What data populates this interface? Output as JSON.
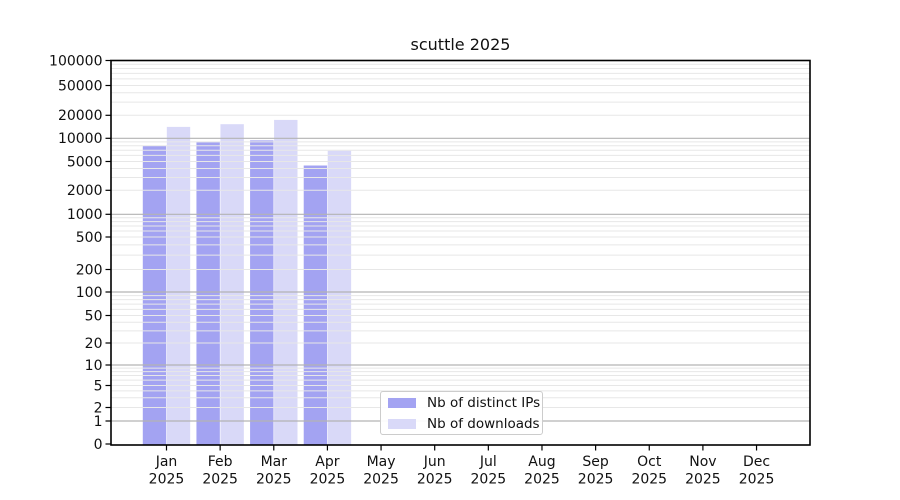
{
  "chart_data": {
    "type": "bar",
    "title": "scuttle 2025",
    "x_months": [
      "Jan",
      "Feb",
      "Mar",
      "Apr",
      "May",
      "Jun",
      "Jul",
      "Aug",
      "Sep",
      "Oct",
      "Nov",
      "Dec"
    ],
    "x_year_label": "2025",
    "series": [
      {
        "name": "Nb of distinct IPs",
        "color": "#a3a3f2",
        "values": [
          8000,
          8900,
          9400,
          4400,
          0,
          0,
          0,
          0,
          0,
          0,
          0,
          0
        ]
      },
      {
        "name": "Nb of downloads",
        "color": "#d9d9f8",
        "values": [
          14100,
          15300,
          17400,
          6900,
          0,
          0,
          0,
          0,
          0,
          0,
          0,
          0
        ]
      }
    ],
    "y_scale": "symlog",
    "y_ticks": [
      100000,
      50000,
      20000,
      10000,
      5000,
      2000,
      1000,
      500,
      200,
      100,
      50,
      20,
      10,
      5,
      2,
      1,
      0
    ],
    "ylim": [
      0,
      100000
    ],
    "grid": "both",
    "legend_position": "lower center",
    "colors": {
      "grid_minor": "#e7e7e7",
      "grid_major": "#b3b3b3",
      "spine": "#000000",
      "text": "#111111"
    }
  }
}
